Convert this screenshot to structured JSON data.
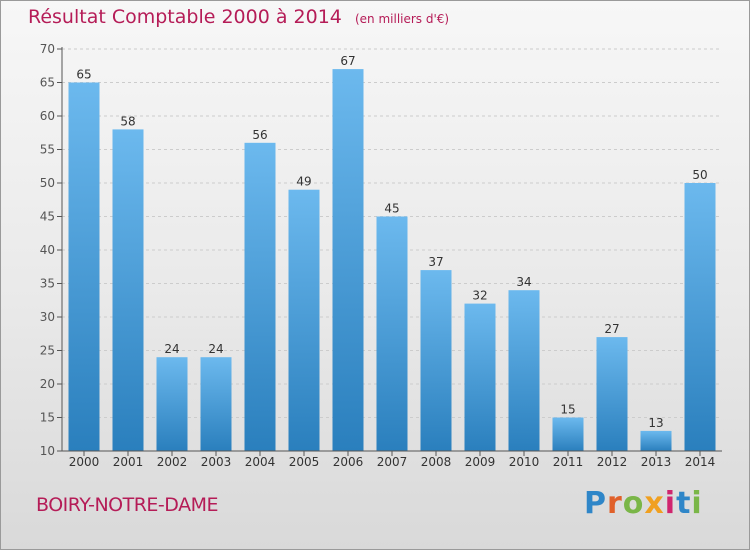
{
  "title": "Résultat Comptable 2000 à 2014",
  "subtitle": "(en milliers d'€)",
  "city": "BOIRY-NOTRE-DAME",
  "brand": "Proxiti",
  "colors": {
    "bar_top": "#6cb9ee",
    "bar_bottom": "#2a7fbd",
    "title": "#b51c57",
    "axis": "#555555",
    "grid": "#cccccc"
  },
  "chart_data": {
    "type": "bar",
    "title": "Résultat Comptable 2000 à 2014",
    "xlabel": "",
    "ylabel": "en milliers d'€",
    "ylim": [
      10,
      70
    ],
    "yticks": [
      10,
      15,
      20,
      25,
      30,
      35,
      40,
      45,
      50,
      55,
      60,
      65,
      70
    ],
    "grid": true,
    "categories": [
      "2000",
      "2001",
      "2002",
      "2003",
      "2004",
      "2005",
      "2006",
      "2007",
      "2008",
      "2009",
      "2010",
      "2011",
      "2012",
      "2013",
      "2014"
    ],
    "values": [
      65,
      58,
      24,
      24,
      56,
      49,
      67,
      45,
      37,
      32,
      34,
      15,
      27,
      13,
      50
    ]
  }
}
